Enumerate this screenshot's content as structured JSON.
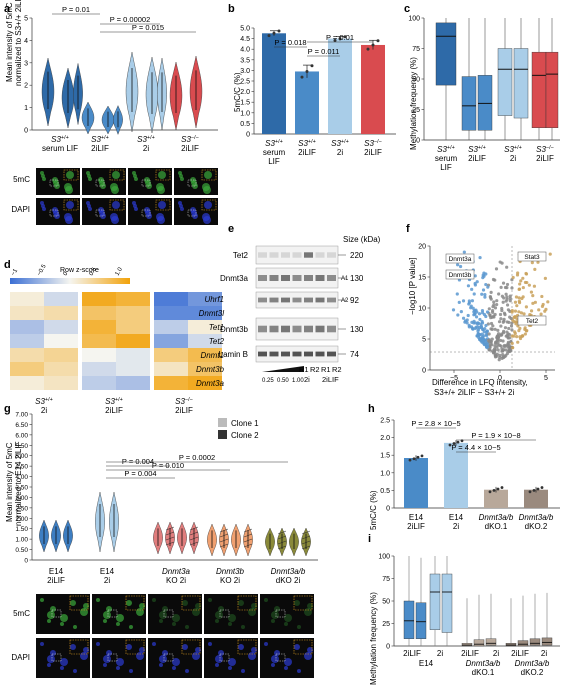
{
  "panels": {
    "a": {
      "letter": "a",
      "ylabel": "Mean intensity of 5mC",
      "ylabel2": "normalized to S3+/+ 2iLIF",
      "yticks": [
        "0",
        "1",
        "2",
        "3",
        "4",
        "5"
      ],
      "stats": [
        "P = 0.01",
        "P = 0.00002",
        "P = 0.015"
      ],
      "groups": [
        {
          "gene": "S3",
          "sup": "+/+",
          "cond": "serum LIF"
        },
        {
          "gene": "S3",
          "sup": "+/+",
          "cond": "2iLIF"
        },
        {
          "gene": "S3",
          "sup": "+/+",
          "cond": "2i"
        },
        {
          "gene": "S3",
          "sup": "−/−",
          "cond": "2iLIF"
        }
      ],
      "img_labels": [
        "5mC",
        "DAPI"
      ]
    },
    "b": {
      "letter": "b",
      "ylabel": "5mC/C (%)",
      "yticks": [
        "0",
        "0.5",
        "1.0",
        "1.5",
        "2.0",
        "2.5",
        "3.0",
        "3.5",
        "4.0",
        "4.5",
        "5.0"
      ],
      "stats": [
        "P = 0.018",
        "P = 0.011",
        "P = 0.01"
      ],
      "groups": [
        {
          "gene": "S3",
          "sup": "+/+",
          "cond": "serum",
          "cond2": "LIF"
        },
        {
          "gene": "S3",
          "sup": "+/+",
          "cond": "2iLIF",
          "cond2": ""
        },
        {
          "gene": "S3",
          "sup": "+/+",
          "cond": "2i",
          "cond2": ""
        },
        {
          "gene": "S3",
          "sup": "−/−",
          "cond": "2iLIF",
          "cond2": ""
        }
      ]
    },
    "c": {
      "letter": "c",
      "ylabel": "Methylation frequency (%)",
      "yticks": [
        "0",
        "25",
        "50",
        "75",
        "100"
      ],
      "groups": [
        {
          "gene": "S3",
          "sup": "+/+",
          "cond": "serum",
          "cond2": "LIF"
        },
        {
          "gene": "S3",
          "sup": "+/+",
          "cond": "2iLIF",
          "cond2": ""
        },
        {
          "gene": "S3",
          "sup": "+/+",
          "cond": "2i",
          "cond2": ""
        },
        {
          "gene": "S3",
          "sup": "−/−",
          "cond": "2iLIF",
          "cond2": ""
        }
      ]
    },
    "d": {
      "letter": "d",
      "legend_title": "Row z-score",
      "legend_ticks": [
        "−1",
        "−0.5",
        "0",
        "0.5",
        "1.0"
      ],
      "genes": [
        "Uhrf1",
        "Dnmt3l",
        "Tet1",
        "Tet2",
        "Dnmt1",
        "Dnmt3b",
        "Dnmt3a"
      ],
      "groups": [
        {
          "gene": "S3",
          "sup": "+/+",
          "cond": "2i"
        },
        {
          "gene": "S3",
          "sup": "+/+",
          "cond": "2iLIF"
        },
        {
          "gene": "S3",
          "sup": "−/−",
          "cond": "2iLIF"
        }
      ]
    },
    "e": {
      "letter": "e",
      "size_label": "Size (kDa)",
      "rows": [
        {
          "name": "Tet2",
          "size": "220",
          "mark": ""
        },
        {
          "name": "Dnmt3a",
          "size": "130",
          "mark": "A1"
        },
        {
          "name": "",
          "size": "92",
          "mark": "A2"
        },
        {
          "name": "Dnmt3b",
          "size": "130",
          "mark": ""
        },
        {
          "name": "Lamin B",
          "size": "74",
          "mark": ""
        }
      ],
      "lanes": [
        "R1",
        "R2",
        "R1",
        "R2"
      ],
      "conds": [
        "2i",
        "2iLIF"
      ],
      "dilution": [
        "0.25",
        "0.50",
        "1.00"
      ]
    },
    "f": {
      "letter": "f",
      "ylabel": "−log10 [P value]",
      "xlabel": "Difference in LFQ intensity,",
      "xlabel2": "S3+/+ 2iLIF − S3+/+ 2i",
      "xticks": [
        "−5",
        "0",
        "5"
      ],
      "yticks": [
        "0",
        "5",
        "10",
        "15",
        "20"
      ],
      "callouts": [
        "Dnmt3a",
        "Dnmt3b",
        "Stat3",
        "Tet2"
      ]
    },
    "g": {
      "letter": "g",
      "ylabel": "Mean intensity of 5mC",
      "ylabel2": "normalized to E14 2iLIF",
      "yticks": [
        "0",
        "0.25",
        "0.50",
        "0.75",
        "1.00",
        "1.25",
        "1.50",
        "1.75",
        "2.00",
        "2.25",
        "2.50",
        "2.75",
        "3.00",
        "3.25",
        "3.50",
        "3.75",
        "4.00",
        "4.25",
        "4.50",
        "4.75",
        "5.00",
        "5.25",
        "5.50",
        "5.75",
        "6.00",
        "6.25",
        "6.50",
        "6.75",
        "7.00"
      ],
      "legend": [
        "Clone 1",
        "Clone 2"
      ],
      "stats": [
        "P = 0.004",
        "P = 0.004",
        "P = 0.010",
        "P = 0.0002"
      ],
      "groups": [
        {
          "l1": "E14",
          "l2": "2iLIF",
          "l3": "",
          "italic": false
        },
        {
          "l1": "E14",
          "l2": "2i",
          "l3": "",
          "italic": false
        },
        {
          "l1": "Dnmt3a",
          "l2": "KO 2i",
          "l3": "",
          "italic": true
        },
        {
          "l1": "Dnmt3b",
          "l2": "KO 2i",
          "l3": "",
          "italic": true
        },
        {
          "l1": "Dnmt3a/b",
          "l2": "dKO 2i",
          "l3": "",
          "italic": true
        }
      ],
      "img_labels": [
        "5mC",
        "DAPI"
      ]
    },
    "h": {
      "letter": "h",
      "ylabel": "5mC/C (%)",
      "yticks": [
        "0",
        "0.5",
        "1.0",
        "1.5",
        "2.0",
        "2.5"
      ],
      "stats": [
        "P = 2.8 × 10−5",
        "P = 4.4 × 10−5",
        "P = 1.9 × 10−8"
      ],
      "groups": [
        {
          "l1": "E14",
          "l2": "2iLIF",
          "l3": ""
        },
        {
          "l1": "E14",
          "l2": "2i",
          "l3": ""
        },
        {
          "l1": "Dnmt3a/b",
          "l2": "dKO.1",
          "l3": ""
        },
        {
          "l1": "Dnmt3a/b",
          "l2": "dKO.2",
          "l3": ""
        }
      ]
    },
    "i": {
      "letter": "i",
      "ylabel": "Methylation frequency (%)",
      "yticks": [
        "0",
        "25",
        "50",
        "75",
        "100"
      ],
      "pairs": [
        "2iLIF",
        "2i",
        "2iLIF",
        "2i",
        "2iLIF",
        "2i"
      ],
      "group_labels": [
        "E14",
        "Dnmt3a/b",
        "Dnmt3a/b"
      ],
      "group_sub": [
        "",
        "dKO.1",
        "dKO.2"
      ]
    }
  },
  "colors": {
    "dark_blue": "#2e6aa8",
    "mid_blue": "#4a8bc8",
    "light_blue": "#a9cde8",
    "red": "#d94b4f",
    "tan": "#b8a89a",
    "grey": "#888888"
  }
}
